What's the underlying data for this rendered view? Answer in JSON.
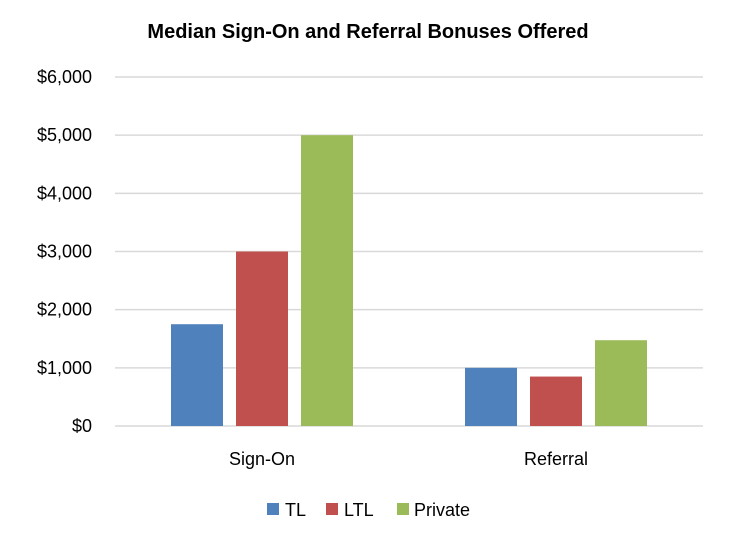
{
  "chart_data": {
    "type": "bar",
    "title": "Median Sign-On and Referral Bonuses Offered",
    "categories": [
      "Sign-On",
      "Referral"
    ],
    "series": [
      {
        "name": "TL",
        "color": "#4f81bd",
        "values": [
          1750,
          1000
        ]
      },
      {
        "name": "LTL",
        "color": "#c0504d",
        "values": [
          3000,
          850
        ]
      },
      {
        "name": "Private",
        "color": "#9bbb59",
        "values": [
          5000,
          1475
        ]
      }
    ],
    "y_ticks": [
      "$0",
      "$1,000",
      "$2,000",
      "$3,000",
      "$4,000",
      "$5,000",
      "$6,000"
    ],
    "ylim": [
      0,
      6000
    ],
    "xlabel": "",
    "ylabel": "",
    "grid": true,
    "legend_position": "bottom"
  }
}
